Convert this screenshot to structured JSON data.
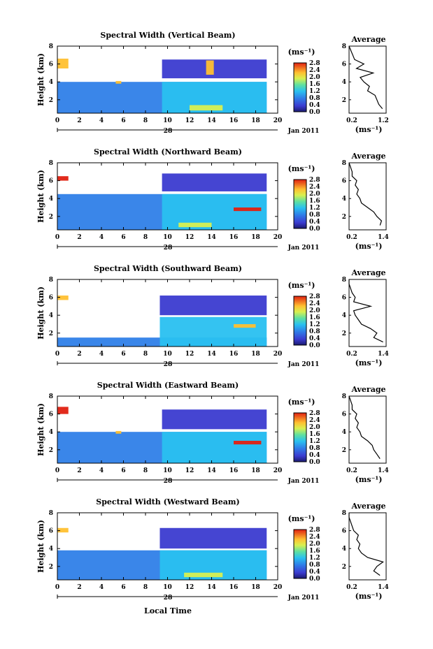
{
  "x_ticks": [
    "0",
    "2",
    "4",
    "6",
    "8",
    "10",
    "12",
    "14",
    "16",
    "18",
    "20"
  ],
  "y_ticks": [
    "2",
    "4",
    "6",
    "8"
  ],
  "ylabel": "Height (km)",
  "unit_label": "(ms⁻¹)",
  "date_day": "28",
  "date_month_year": "Jan 2011",
  "xlabel": "Local Time",
  "avg_title": "Average",
  "avg_unit": "(ms⁻¹)",
  "colorbar_ticks": [
    "2.8",
    "2.4",
    "2.0",
    "1.6",
    "1.2",
    "0.8",
    "0.4",
    "0.0"
  ],
  "panels": [
    {
      "title": "Spectral Width (Vertical Beam)",
      "cb_ticks": [
        "2.8",
        "2.4",
        "2.0",
        "1.6",
        "1.2",
        "0.8",
        "0.4",
        "0.0"
      ],
      "avg_ticks": [
        "0.2",
        "1.2"
      ]
    },
    {
      "title": "Spectral Width (Northward Beam)",
      "cb_ticks": [
        "2.8",
        "2.4",
        "2.0",
        "1.6",
        "1.2",
        "0.8",
        "0.4",
        "0.0"
      ],
      "avg_ticks": [
        "0.2",
        "1.4"
      ]
    },
    {
      "title": "Spectral Width (Southward Beam)",
      "cb_ticks": [
        "2.8",
        "2.4",
        "2.0",
        "1.6",
        "1.2",
        "0.8",
        "0.4",
        "0.0"
      ],
      "avg_ticks": [
        "0.2",
        "1.4"
      ]
    },
    {
      "title": "Spectral Width (Eastward Beam)",
      "cb_ticks": [
        "2.8",
        "2.4",
        "2.0",
        "1.6",
        "1.2",
        "0.8",
        "0.4",
        "0.0"
      ],
      "avg_ticks": [
        "0.2",
        "1.4"
      ]
    },
    {
      "title": "Spectral Width (Westward Beam)",
      "cb_ticks": [
        "2.8",
        "2.4",
        "2.0",
        "1.6",
        "1.2",
        "0.8",
        "0.4",
        "0.0"
      ],
      "avg_ticks": [
        "0.2",
        "1.4"
      ]
    }
  ],
  "chart_data": {
    "type": "heatmap",
    "x_range_hours": [
      0,
      20
    ],
    "y_range_km": [
      0.5,
      8
    ],
    "colorbar_range": [
      0.0,
      2.8
    ],
    "panels": [
      {
        "title": "Spectral Width (Vertical Beam)",
        "regions": [
          {
            "x0": 0,
            "x1": 19,
            "y0": 0.5,
            "y1": 4.0,
            "value": 0.5
          },
          {
            "x0": 9.5,
            "x1": 19,
            "y0": 0.5,
            "y1": 4.0,
            "value": 1.1
          },
          {
            "x0": 9.5,
            "x1": 19,
            "y0": 4.4,
            "y1": 6.5,
            "value": 0.3
          },
          {
            "x0": 13.5,
            "x1": 14.2,
            "y0": 4.8,
            "y1": 6.4,
            "value": 2.0
          },
          {
            "x0": 0,
            "x1": 1,
            "y0": 5.5,
            "y1": 6.6,
            "value": 2.2
          },
          {
            "x0": 5.3,
            "x1": 5.8,
            "y0": 3.8,
            "y1": 4.1,
            "value": 2.2
          },
          {
            "x0": 12,
            "x1": 15,
            "y0": 0.8,
            "y1": 1.4,
            "value": 1.9
          }
        ],
        "average_profile": {
          "height": [
            1,
            1.5,
            2,
            2.5,
            3,
            3.5,
            4,
            4.5,
            5,
            5.5,
            6,
            6.5,
            7,
            7.5,
            8
          ],
          "width": [
            1.1,
            1.0,
            0.95,
            0.9,
            0.7,
            0.75,
            0.6,
            0.5,
            0.85,
            0.4,
            0.6,
            0.35,
            0.3,
            0.25,
            0.2
          ]
        }
      },
      {
        "title": "Spectral Width (Northward Beam)",
        "regions": [
          {
            "x0": 0,
            "x1": 19,
            "y0": 0.5,
            "y1": 4.5,
            "value": 0.5
          },
          {
            "x0": 9.5,
            "x1": 19,
            "y0": 0.5,
            "y1": 4.5,
            "value": 1.0
          },
          {
            "x0": 9.5,
            "x1": 19,
            "y0": 4.8,
            "y1": 6.8,
            "value": 0.3
          },
          {
            "x0": 16,
            "x1": 18.5,
            "y0": 2.6,
            "y1": 3.0,
            "value": 2.5
          },
          {
            "x0": 0,
            "x1": 1,
            "y0": 6.0,
            "y1": 6.5,
            "value": 2.4
          },
          {
            "x0": 11,
            "x1": 14,
            "y0": 0.8,
            "y1": 1.3,
            "value": 1.9
          }
        ],
        "average_profile": {
          "height": [
            1,
            1.5,
            2,
            2.5,
            3,
            3.5,
            4,
            4.5,
            5,
            5.5,
            6,
            6.5,
            7,
            7.5,
            8
          ],
          "width": [
            1.2,
            1.25,
            1.1,
            1.0,
            0.8,
            0.6,
            0.55,
            0.45,
            0.5,
            0.4,
            0.45,
            0.3,
            0.3,
            0.25,
            0.2
          ]
        }
      },
      {
        "title": "Spectral Width (Southward Beam)",
        "regions": [
          {
            "x0": 0,
            "x1": 19,
            "y0": 0.5,
            "y1": 1.5,
            "value": 0.6
          },
          {
            "x0": 9.3,
            "x1": 19,
            "y0": 0.5,
            "y1": 3.8,
            "value": 1.0
          },
          {
            "x0": 9.3,
            "x1": 19,
            "y0": 4.0,
            "y1": 6.2,
            "value": 0.3
          },
          {
            "x0": 0,
            "x1": 1,
            "y0": 5.7,
            "y1": 6.2,
            "value": 2.2
          },
          {
            "x0": 16,
            "x1": 18,
            "y0": 2.6,
            "y1": 3.0,
            "value": 2.2
          }
        ],
        "average_profile": {
          "height": [
            1,
            1.5,
            2,
            2.5,
            3,
            3.5,
            4,
            4.5,
            5,
            5.5,
            6,
            6.5,
            7,
            7.5,
            8
          ],
          "width": [
            1.3,
            1.0,
            1.1,
            0.9,
            0.6,
            0.5,
            0.4,
            0.35,
            0.9,
            0.35,
            0.4,
            0.3,
            0.25,
            0.2,
            0.2
          ]
        }
      },
      {
        "title": "Spectral Width (Eastward Beam)",
        "regions": [
          {
            "x0": 0,
            "x1": 19,
            "y0": 0.5,
            "y1": 4.0,
            "value": 0.5
          },
          {
            "x0": 9.5,
            "x1": 19,
            "y0": 0.5,
            "y1": 4.0,
            "value": 1.0
          },
          {
            "x0": 9.5,
            "x1": 19,
            "y0": 4.3,
            "y1": 6.5,
            "value": 0.3
          },
          {
            "x0": 16,
            "x1": 18.5,
            "y0": 2.6,
            "y1": 3.0,
            "value": 2.4
          },
          {
            "x0": 0,
            "x1": 1,
            "y0": 6.0,
            "y1": 6.8,
            "value": 2.3
          },
          {
            "x0": 5.3,
            "x1": 5.8,
            "y0": 3.8,
            "y1": 4.1,
            "value": 2.2
          }
        ],
        "average_profile": {
          "height": [
            1,
            1.5,
            2,
            2.5,
            3,
            3.5,
            4,
            4.5,
            5,
            5.5,
            6,
            6.5,
            7,
            7.5,
            8
          ],
          "width": [
            1.2,
            1.1,
            1.0,
            0.95,
            0.8,
            0.6,
            0.55,
            0.45,
            0.5,
            0.4,
            0.45,
            0.3,
            0.3,
            0.25,
            0.2
          ]
        }
      },
      {
        "title": "Spectral Width (Westward Beam)",
        "regions": [
          {
            "x0": 0,
            "x1": 19,
            "y0": 0.5,
            "y1": 3.8,
            "value": 0.5
          },
          {
            "x0": 9.3,
            "x1": 19,
            "y0": 0.5,
            "y1": 3.8,
            "value": 1.0
          },
          {
            "x0": 9.3,
            "x1": 19,
            "y0": 4.0,
            "y1": 6.3,
            "value": 0.3
          },
          {
            "x0": 0,
            "x1": 1,
            "y0": 5.8,
            "y1": 6.3,
            "value": 2.2
          },
          {
            "x0": 11.5,
            "x1": 15,
            "y0": 0.8,
            "y1": 1.3,
            "value": 1.9
          }
        ],
        "average_profile": {
          "height": [
            1,
            1.5,
            2,
            2.5,
            3,
            3.5,
            4,
            4.5,
            5,
            5.5,
            6,
            6.5,
            7,
            7.5,
            8
          ],
          "width": [
            1.2,
            1.0,
            1.1,
            1.3,
            0.8,
            0.6,
            0.5,
            0.55,
            0.45,
            0.5,
            0.35,
            0.3,
            0.25,
            0.2,
            0.2
          ]
        }
      }
    ]
  }
}
